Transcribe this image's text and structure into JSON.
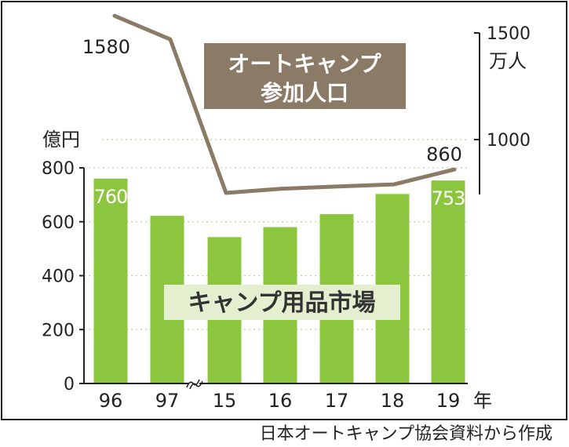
{
  "chart_data": {
    "type": "bar",
    "categories": [
      "96",
      "97",
      "15",
      "16",
      "17",
      "18",
      "19"
    ],
    "x_unit": "年",
    "series": [
      {
        "name": "キャンプ用品市場",
        "axis": "left",
        "type": "bar",
        "unit": "億円",
        "values": [
          760,
          622,
          543,
          580,
          628,
          703,
          753
        ],
        "data_labels": {
          "0": "760",
          "6": "753"
        },
        "color": "#8cc63f"
      },
      {
        "name": "オートキャンプ参加人口",
        "name_lines": [
          "オートキャンプ",
          "参加人口"
        ],
        "axis": "right",
        "type": "line",
        "unit": "万人",
        "values": [
          1580,
          1470,
          750,
          770,
          780,
          790,
          860
        ],
        "data_labels": {
          "0": "1580",
          "6": "860"
        },
        "color": "#8b7b66"
      }
    ],
    "left_axis": {
      "unit": "億円",
      "ylim": [
        0,
        800
      ],
      "ticks": [
        "0",
        "200",
        "400",
        "600",
        "800"
      ]
    },
    "right_axis": {
      "unit": "万人",
      "ticks": [
        "1000",
        "1500"
      ]
    },
    "axis_break_between": [
      "97",
      "15"
    ],
    "grid": "dotted",
    "source": "日本オートキャンプ協会資料から作成"
  }
}
